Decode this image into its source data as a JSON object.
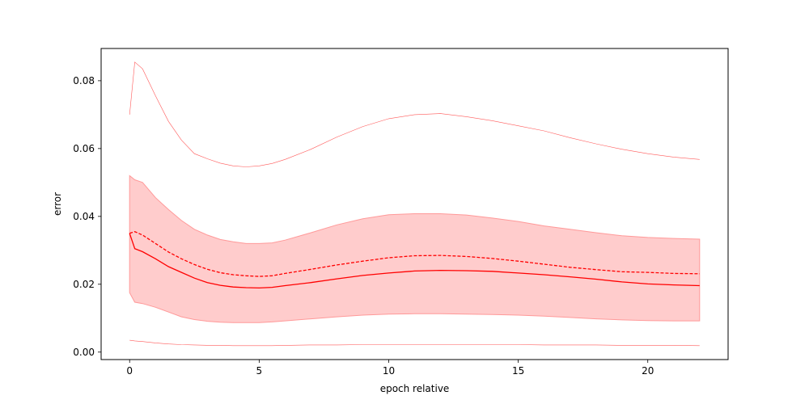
{
  "chart_data": {
    "type": "line",
    "title": "",
    "xlabel": "epoch relative",
    "ylabel": "error",
    "xlim": [
      -1.1,
      23.1
    ],
    "ylim": [
      -0.0022,
      0.0895
    ],
    "xticks": [
      0,
      5,
      10,
      15,
      20
    ],
    "yticks": [
      0.0,
      0.02,
      0.04,
      0.06,
      0.08
    ],
    "ytick_labels": [
      "0.00",
      "0.02",
      "0.04",
      "0.06",
      "0.08"
    ],
    "grid": false,
    "legend": "none",
    "color": "#ff0000",
    "band_color": "#ff9999",
    "x": [
      0,
      0.2,
      0.5,
      1,
      1.5,
      2,
      2.5,
      3,
      3.5,
      4,
      4.5,
      5,
      5.5,
      6,
      7,
      8,
      9,
      10,
      11,
      12,
      13,
      14,
      15,
      16,
      17,
      18,
      19,
      20,
      21,
      22
    ],
    "series": [
      {
        "style": "solid",
        "values": [
          0.035,
          0.0305,
          0.0296,
          0.0275,
          0.0252,
          0.0235,
          0.0218,
          0.0205,
          0.0197,
          0.0192,
          0.019,
          0.0189,
          0.0191,
          0.0196,
          0.0205,
          0.0216,
          0.0226,
          0.0233,
          0.0239,
          0.0241,
          0.024,
          0.0238,
          0.0233,
          0.0228,
          0.0222,
          0.0215,
          0.0207,
          0.0201,
          0.0198,
          0.0196
        ]
      },
      {
        "style": "dashed",
        "values": [
          0.035,
          0.0355,
          0.0345,
          0.032,
          0.0295,
          0.0275,
          0.0258,
          0.0244,
          0.0234,
          0.0228,
          0.0225,
          0.0223,
          0.0225,
          0.0232,
          0.0244,
          0.0257,
          0.0268,
          0.0278,
          0.0284,
          0.0285,
          0.0282,
          0.0276,
          0.0268,
          0.0259,
          0.025,
          0.0243,
          0.0237,
          0.0235,
          0.0232,
          0.0231
        ]
      },
      {
        "style": "band",
        "upper": [
          0.052,
          0.0508,
          0.05,
          0.0455,
          0.042,
          0.0388,
          0.0362,
          0.0345,
          0.0332,
          0.0325,
          0.032,
          0.032,
          0.0322,
          0.033,
          0.0352,
          0.0375,
          0.0393,
          0.0405,
          0.0408,
          0.0408,
          0.0404,
          0.0395,
          0.0385,
          0.0372,
          0.0362,
          0.0352,
          0.0343,
          0.0338,
          0.0335,
          0.0333
        ],
        "lower": [
          0.0175,
          0.0147,
          0.0143,
          0.0132,
          0.0118,
          0.0104,
          0.0096,
          0.0091,
          0.0088,
          0.0087,
          0.0087,
          0.0087,
          0.0089,
          0.0092,
          0.0098,
          0.0104,
          0.0109,
          0.0112,
          0.0113,
          0.0113,
          0.0112,
          0.0111,
          0.0109,
          0.0106,
          0.0102,
          0.0098,
          0.0095,
          0.0093,
          0.0092,
          0.0092
        ]
      },
      {
        "style": "thin",
        "values": [
          0.07,
          0.0855,
          0.0835,
          0.0755,
          0.068,
          0.0625,
          0.0585,
          0.057,
          0.0557,
          0.0549,
          0.0546,
          0.0549,
          0.0556,
          0.0568,
          0.0598,
          0.0634,
          0.0665,
          0.0688,
          0.07,
          0.0703,
          0.0694,
          0.0682,
          0.0667,
          0.0652,
          0.0632,
          0.0614,
          0.0598,
          0.0585,
          0.0575,
          0.0568
        ]
      },
      {
        "style": "thin",
        "values": [
          0.0035,
          0.0033,
          0.0031,
          0.0027,
          0.0024,
          0.0022,
          0.0021,
          0.002,
          0.002,
          0.0019,
          0.0019,
          0.0019,
          0.0019,
          0.002,
          0.0021,
          0.0021,
          0.0022,
          0.0022,
          0.0022,
          0.0022,
          0.0022,
          0.0022,
          0.0022,
          0.0021,
          0.0021,
          0.0021,
          0.002,
          0.002,
          0.002,
          0.0019
        ]
      }
    ]
  }
}
